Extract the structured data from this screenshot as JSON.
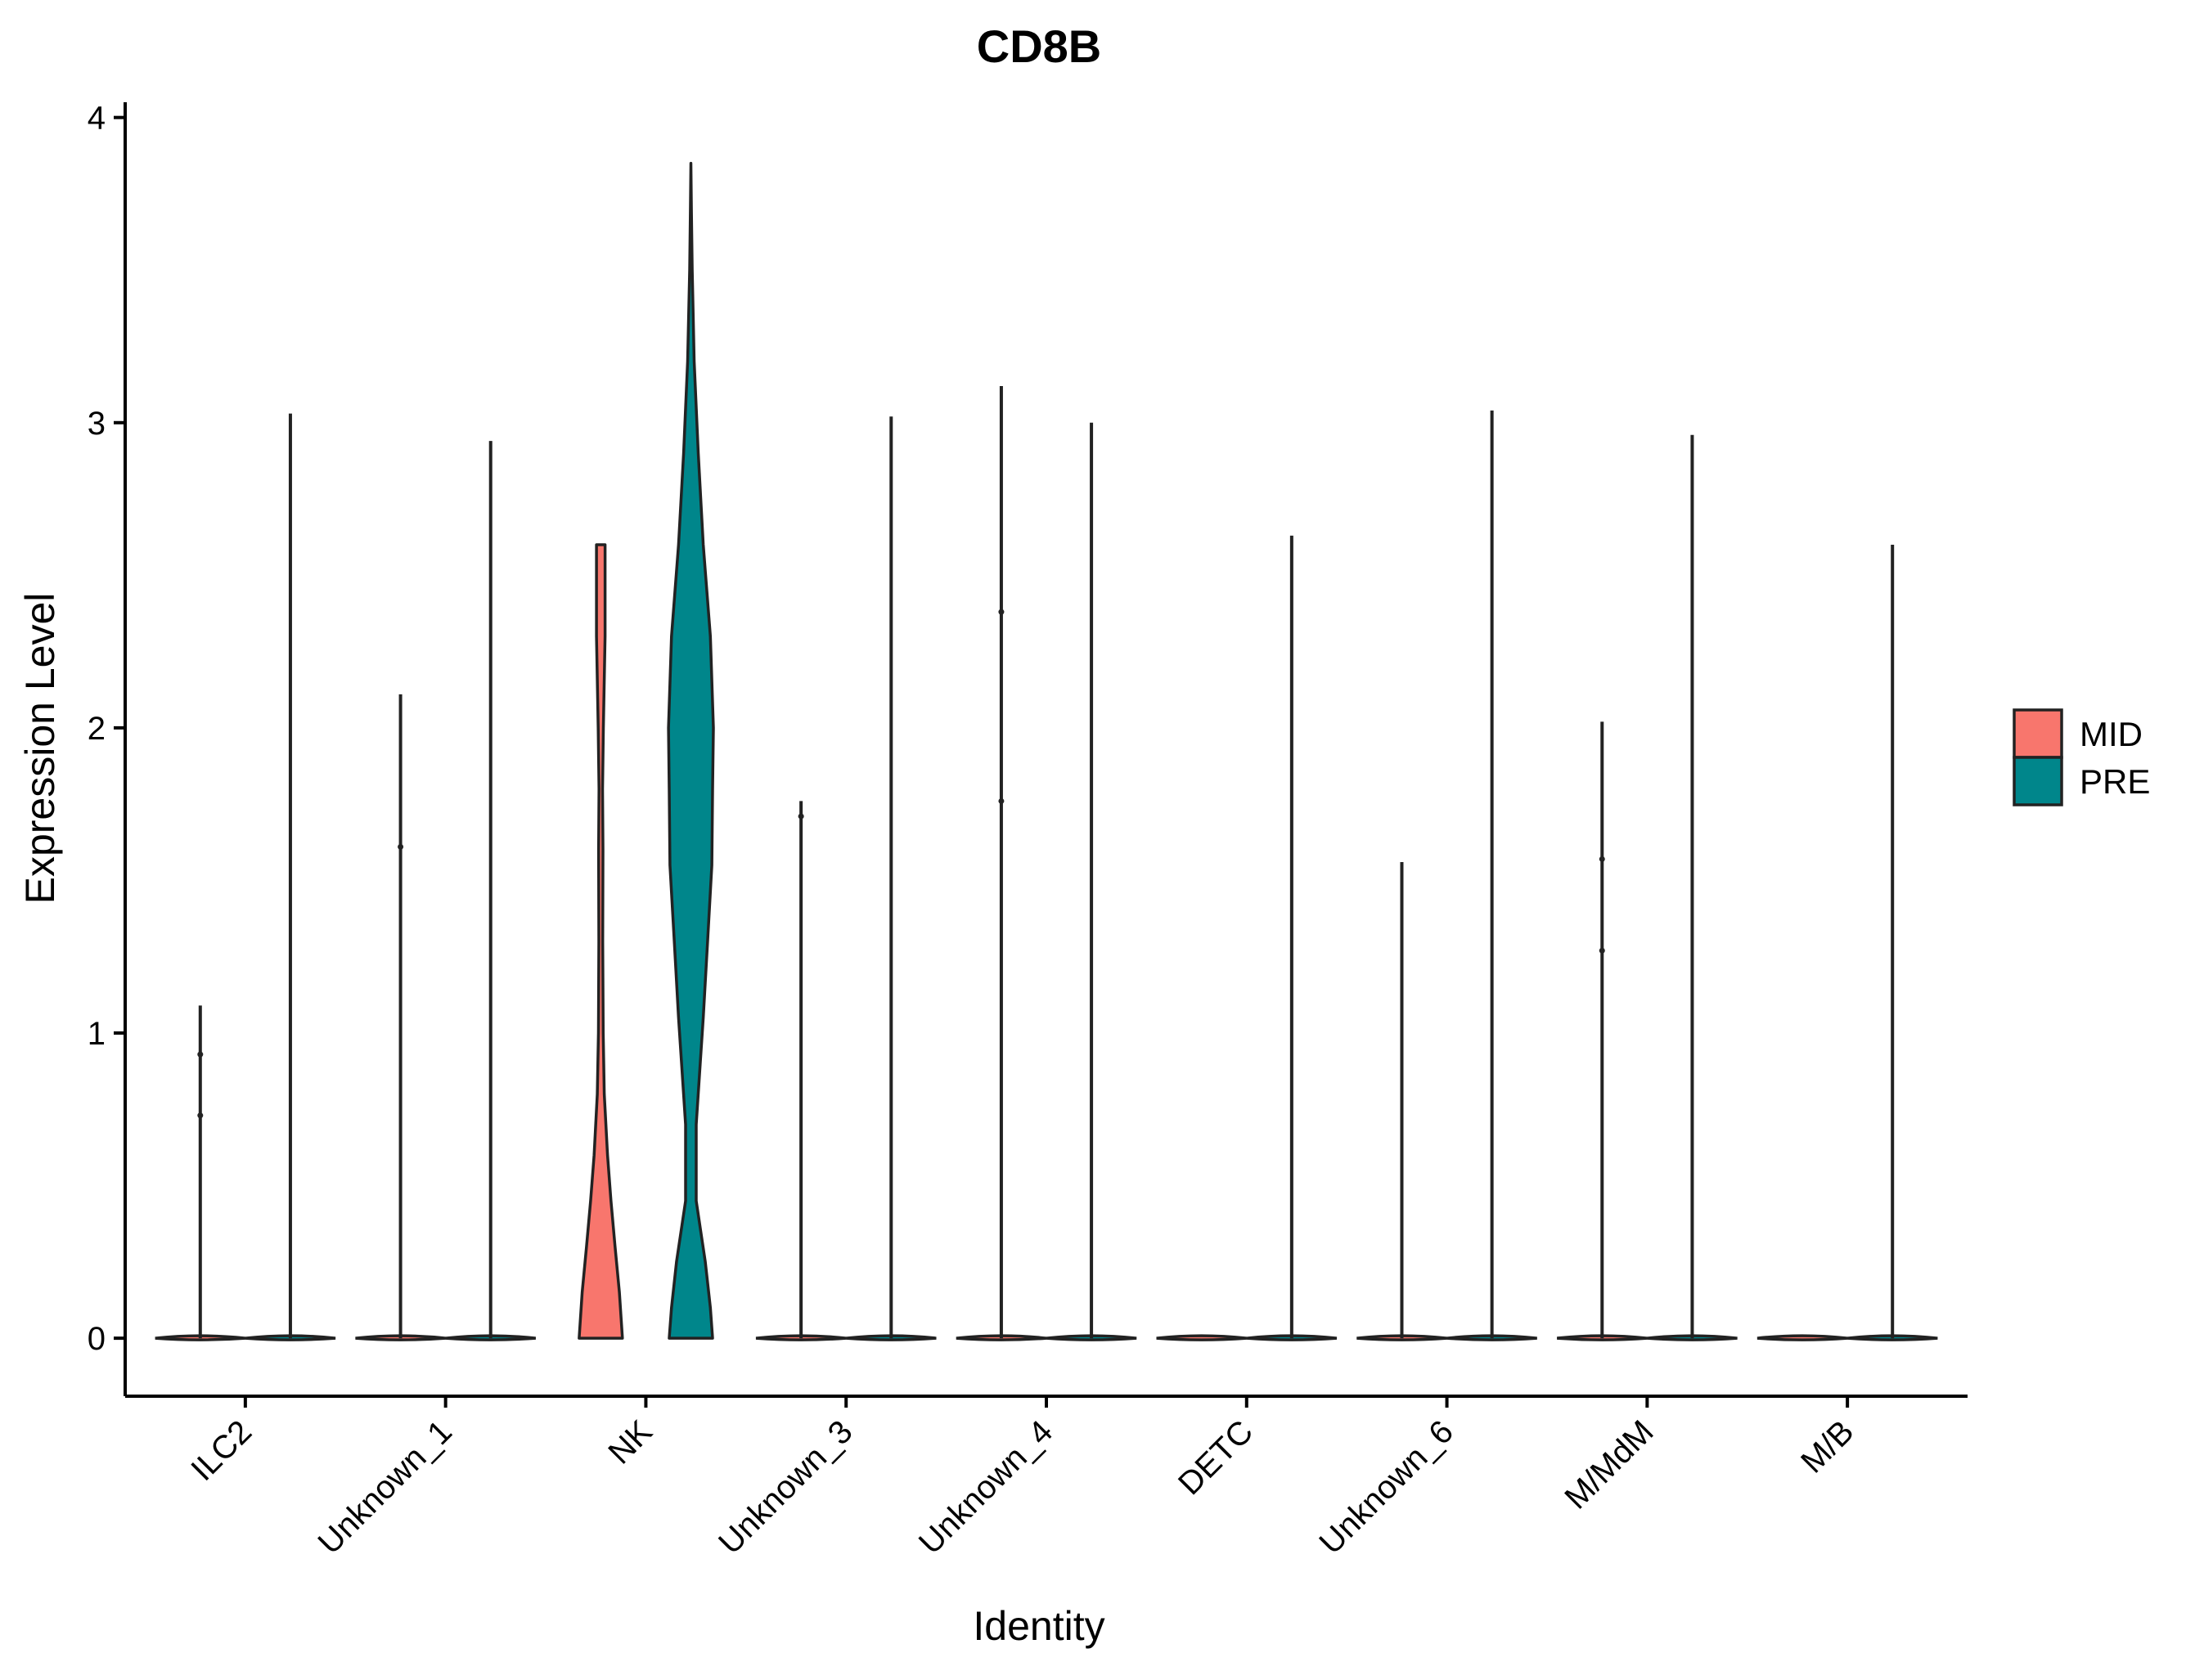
{
  "chart_data": {
    "type": "violin",
    "title": "CD8B",
    "xlabel": "Identity",
    "ylabel": "Expression Level",
    "ylim": [
      -0.19,
      4.05
    ],
    "yticks": [
      0,
      1,
      2,
      3,
      4
    ],
    "categories": [
      "ILC2",
      "Unknown_1",
      "NK",
      "Unknown_3",
      "Unknown_4",
      "DETC",
      "Unknown_6",
      "M/MdM",
      "M/B"
    ],
    "legend": {
      "position": "right",
      "items": [
        {
          "name": "MID",
          "color": "#F8766D"
        },
        {
          "name": "PRE",
          "color": "#00868B"
        }
      ]
    },
    "series": [
      {
        "name": "MID",
        "color": "#F8766D",
        "max": [
          1.09,
          2.11,
          2.6,
          1.76,
          3.12,
          0.0,
          1.56,
          2.02,
          0.0
        ],
        "outliers": [
          [
            0.93,
            0.73
          ],
          [
            1.61
          ],
          [],
          [
            1.71
          ],
          [
            2.38,
            1.76
          ],
          [],
          [],
          [
            1.57,
            1.27
          ],
          []
        ]
      },
      {
        "name": "PRE",
        "color": "#00868B",
        "max": [
          3.03,
          2.94,
          3.85,
          3.02,
          3.0,
          2.63,
          3.04,
          2.96,
          2.6
        ],
        "outliers": [
          [],
          [],
          [],
          [],
          [],
          [],
          [],
          [],
          []
        ]
      }
    ],
    "density_profiles": {
      "NK_MID": {
        "y": [
          0,
          0.15,
          0.3,
          0.45,
          0.6,
          0.8,
          1.0,
          1.3,
          1.6,
          1.8,
          2.0,
          2.3,
          2.6
        ],
        "width": [
          1.0,
          0.86,
          0.66,
          0.47,
          0.31,
          0.16,
          0.11,
          0.09,
          0.1,
          0.08,
          0.12,
          0.2,
          0.2
        ]
      },
      "NK_PRE": {
        "y": [
          0,
          0.1,
          0.25,
          0.45,
          0.55,
          0.7,
          0.9,
          1.05,
          1.3,
          1.55,
          1.8,
          2.0,
          2.3,
          2.6,
          2.9,
          3.2,
          3.5,
          3.7,
          3.85
        ],
        "width": [
          0.86,
          0.77,
          0.57,
          0.21,
          0.21,
          0.21,
          0.37,
          0.49,
          0.66,
          0.83,
          0.86,
          0.89,
          0.77,
          0.49,
          0.29,
          0.13,
          0.05,
          0.02,
          0.0
        ]
      }
    }
  }
}
